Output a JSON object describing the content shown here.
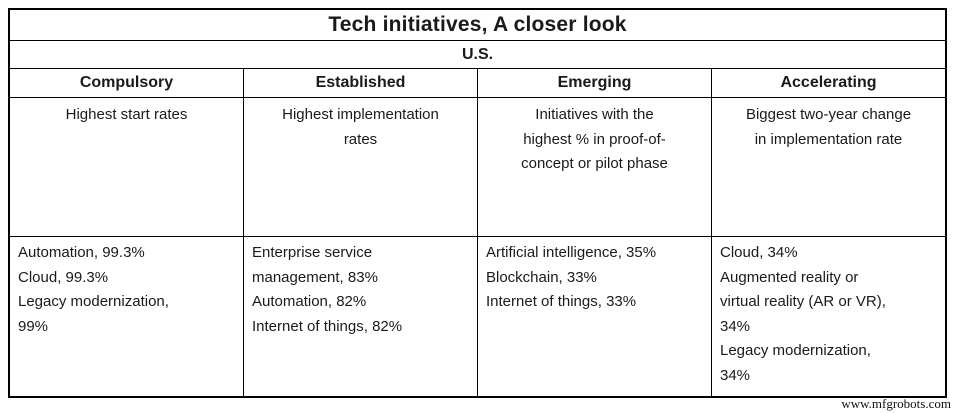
{
  "page": {
    "background_color": "#ffffff",
    "text_color": "#1a1a1a",
    "border_color": "#000000"
  },
  "table": {
    "title": "Tech initiatives, A closer look",
    "region": "U.S.",
    "columns": [
      {
        "header": "Compulsory",
        "description": "Highest start rates",
        "data": "Automation, 99.3%\nCloud, 99.3%\nLegacy modernization,\n99%"
      },
      {
        "header": "Established",
        "description": "Highest implementation\nrates",
        "data": "Enterprise service\nmanagement, 83%\nAutomation, 82%\nInternet of things, 82%"
      },
      {
        "header": "Emerging",
        "description": "Initiatives with the\nhighest % in proof-of-\nconcept or pilot phase",
        "data": "Artificial intelligence, 35%\nBlockchain, 33%\nInternet of things, 33%"
      },
      {
        "header": "Accelerating",
        "description": "Biggest two-year change\nin implementation rate",
        "data": "Cloud, 34%\nAugmented reality or\nvirtual reality (AR or VR),\n34%\nLegacy modernization,\n34%"
      }
    ]
  },
  "watermark": "www.mfgrobots.com",
  "chart_data": {
    "type": "table",
    "title": "Tech initiatives, A closer look",
    "subtitle": "U.S.",
    "columns": [
      {
        "category": "Compulsory",
        "metric": "Highest start rates",
        "entries": [
          {
            "initiative": "Automation",
            "value_pct": 99.3
          },
          {
            "initiative": "Cloud",
            "value_pct": 99.3
          },
          {
            "initiative": "Legacy modernization",
            "value_pct": 99
          }
        ]
      },
      {
        "category": "Established",
        "metric": "Highest implementation rates",
        "entries": [
          {
            "initiative": "Enterprise service management",
            "value_pct": 83
          },
          {
            "initiative": "Automation",
            "value_pct": 82
          },
          {
            "initiative": "Internet of things",
            "value_pct": 82
          }
        ]
      },
      {
        "category": "Emerging",
        "metric": "Initiatives with the highest % in proof-of-concept or pilot phase",
        "entries": [
          {
            "initiative": "Artificial intelligence",
            "value_pct": 35
          },
          {
            "initiative": "Blockchain",
            "value_pct": 33
          },
          {
            "initiative": "Internet of things",
            "value_pct": 33
          }
        ]
      },
      {
        "category": "Accelerating",
        "metric": "Biggest two-year change in implementation rate",
        "entries": [
          {
            "initiative": "Cloud",
            "value_pct": 34
          },
          {
            "initiative": "Augmented reality or virtual reality (AR or VR)",
            "value_pct": 34
          },
          {
            "initiative": "Legacy modernization",
            "value_pct": 34
          }
        ]
      }
    ]
  }
}
